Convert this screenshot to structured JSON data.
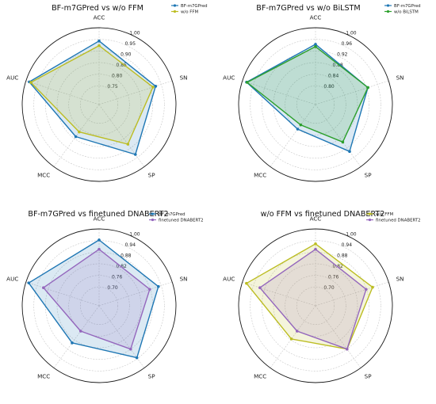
{
  "chart_data": [
    {
      "type": "radar",
      "title": "BF-m7GPred vs w/o FFM",
      "axes": [
        "ACC",
        "SN",
        "SP",
        "MCC",
        "AUC"
      ],
      "rlim": [
        0.7,
        1.0
      ],
      "rticks": [
        "0.75",
        "0.80",
        "0.85",
        "0.90",
        "0.95",
        "1.00"
      ],
      "legend_position": "top-right",
      "series": [
        {
          "name": "BF-m7GPred",
          "color": "#1f77b4",
          "values": [
            0.943,
            0.925,
            0.935,
            0.84,
            0.985
          ]
        },
        {
          "name": "w/o FFM",
          "color": "#bcbd22",
          "values": [
            0.923,
            0.913,
            0.88,
            0.815,
            0.978
          ]
        }
      ]
    },
    {
      "type": "radar",
      "title": "BF-m7GPred vs w/o BiLSTM",
      "axes": [
        "ACC",
        "SN",
        "SP",
        "MCC",
        "AUC"
      ],
      "rlim": [
        0.76,
        1.0
      ],
      "rticks": [
        "0.80",
        "0.84",
        "0.88",
        "0.92",
        "0.96",
        "1.00"
      ],
      "legend_position": "top-right",
      "series": [
        {
          "name": "BF-m7GPred",
          "color": "#1f77b4",
          "values": [
            0.943,
            0.925,
            0.935,
            0.84,
            0.985
          ]
        },
        {
          "name": "w/o BiLSTM",
          "color": "#2ca02c",
          "values": [
            0.935,
            0.925,
            0.895,
            0.822,
            0.983
          ]
        }
      ]
    },
    {
      "type": "radar",
      "title": "BF-m7GPred vs finetuned DNABERT2",
      "axes": [
        "ACC",
        "SN",
        "SP",
        "MCC",
        "AUC"
      ],
      "rlim": [
        0.64,
        1.0
      ],
      "rticks": [
        "0.70",
        "0.76",
        "0.82",
        "0.88",
        "0.94",
        "1.00"
      ],
      "legend_position": "top-right",
      "series": [
        {
          "name": "BF-m7GPred",
          "color": "#1f77b4",
          "values": [
            0.943,
            0.925,
            0.935,
            0.84,
            0.985
          ]
        },
        {
          "name": "finetuned DNABERT2",
          "color": "#9467bd",
          "values": [
            0.895,
            0.878,
            0.88,
            0.765,
            0.905
          ]
        }
      ]
    },
    {
      "type": "radar",
      "title": "w/o FFM vs finetuned DNABERT2",
      "axes": [
        "ACC",
        "SN",
        "SP",
        "MCC",
        "AUC"
      ],
      "rlim": [
        0.64,
        1.0
      ],
      "rticks": [
        "0.70",
        "0.76",
        "0.82",
        "0.88",
        "0.94",
        "1.00"
      ],
      "legend_position": "top-right",
      "series": [
        {
          "name": "w/o FFM",
          "color": "#bcbd22",
          "values": [
            0.923,
            0.913,
            0.88,
            0.815,
            0.978
          ]
        },
        {
          "name": "finetuned DNABERT2",
          "color": "#9467bd",
          "values": [
            0.895,
            0.878,
            0.88,
            0.765,
            0.905
          ]
        }
      ]
    }
  ]
}
